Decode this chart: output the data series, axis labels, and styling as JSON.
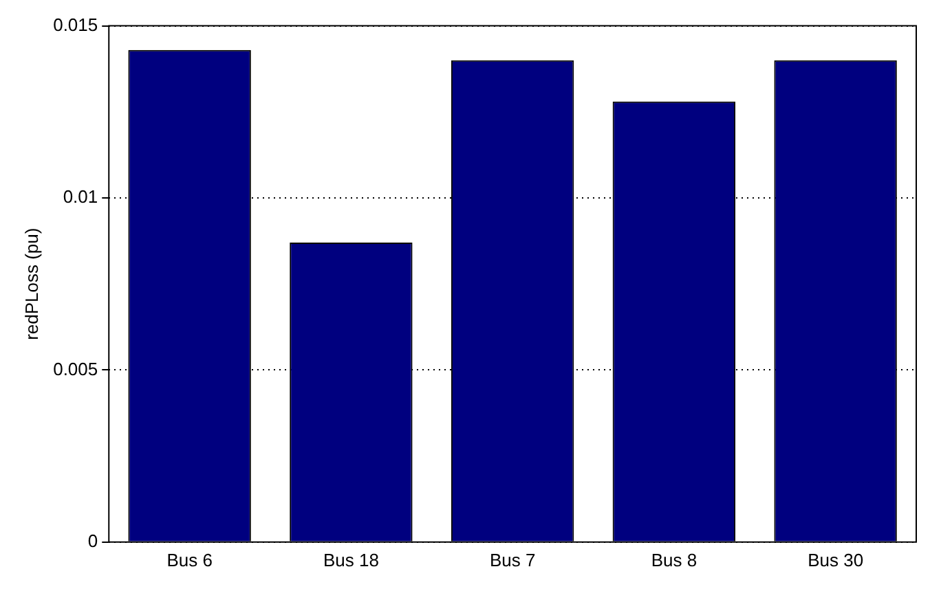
{
  "chart_data": {
    "type": "bar",
    "ylabel": "redPLoss (pu)",
    "categories": [
      "Bus 6",
      "Bus 18",
      "Bus 7",
      "Bus 8",
      "Bus 30"
    ],
    "values": [
      0.0143,
      0.0087,
      0.014,
      0.0128,
      0.014
    ],
    "color": "#00007f",
    "ylim": [
      0,
      0.015
    ],
    "yticks": [
      0,
      0.005,
      0.01,
      0.015
    ],
    "grid": "y",
    "legend": false
  }
}
